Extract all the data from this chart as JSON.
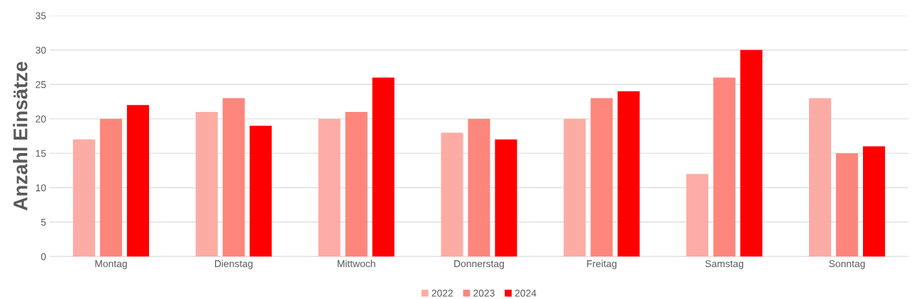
{
  "chart_data": {
    "type": "bar",
    "ylabel": "Anzahl Einsätze",
    "categories": [
      "Montag",
      "Dienstag",
      "Mittwoch",
      "Donnerstag",
      "Freitag",
      "Samstag",
      "Sonntag"
    ],
    "series": [
      {
        "name": "2022",
        "color": "#fcaca4",
        "values": [
          17,
          21,
          20,
          18,
          20,
          12,
          23
        ]
      },
      {
        "name": "2023",
        "color": "#fc867c",
        "values": [
          20,
          23,
          21,
          20,
          23,
          26,
          15
        ]
      },
      {
        "name": "2024",
        "color": "#fe0000",
        "values": [
          22,
          19,
          26,
          17,
          24,
          30,
          16
        ]
      }
    ],
    "ylim": [
      0,
      35
    ],
    "yticks": [
      0,
      5,
      10,
      15,
      20,
      25,
      30,
      35
    ],
    "grid": "y",
    "legend": "bottom"
  }
}
